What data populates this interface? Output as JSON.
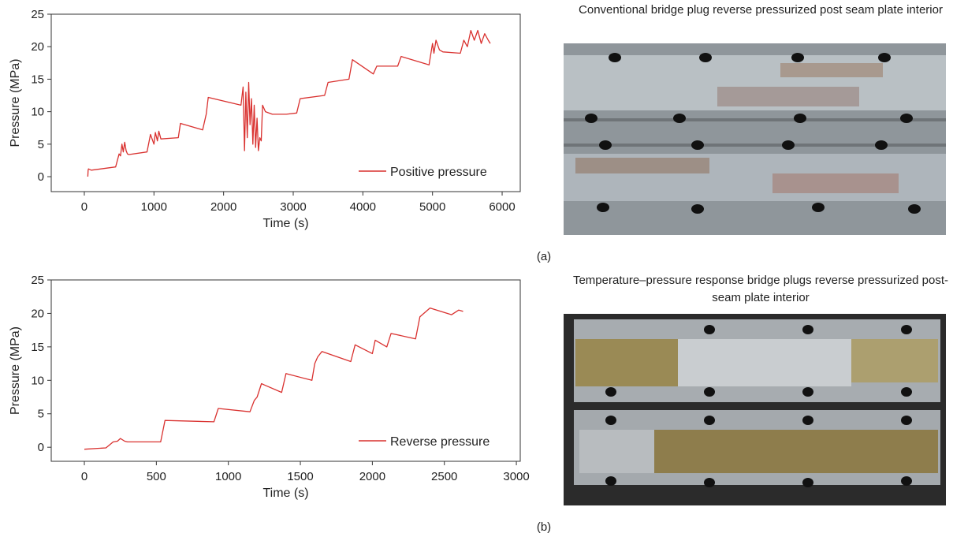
{
  "chart_data": [
    {
      "type": "line",
      "xlabel": "Time (s)",
      "ylabel": "Pressure (MPa)",
      "xlim": [
        -475,
        6260
      ],
      "ylim": [
        -2.3,
        25
      ],
      "xticks": [
        0,
        1000,
        2000,
        3000,
        4000,
        5000,
        6000
      ],
      "yticks": [
        0,
        5,
        10,
        15,
        20,
        25
      ],
      "grid": false,
      "legend": "lower right",
      "series": [
        {
          "name": "Positive pressure",
          "color": "#d9312f",
          "x": [
            50,
            55,
            60,
            100,
            450,
            500,
            520,
            540,
            560,
            580,
            600,
            620,
            640,
            900,
            950,
            1000,
            1020,
            1050,
            1070,
            1100,
            1350,
            1380,
            1700,
            1750,
            1780,
            2250,
            2280,
            2300,
            2320,
            2340,
            2360,
            2380,
            2400,
            2420,
            2440,
            2460,
            2480,
            2500,
            2520,
            2540,
            2560,
            2600,
            2700,
            2900,
            3050,
            3100,
            3450,
            3500,
            3800,
            3850,
            4150,
            4200,
            4500,
            4550,
            4950,
            5000,
            5020,
            5050,
            5100,
            5150,
            5400,
            5450,
            5500,
            5550,
            5600,
            5650,
            5700,
            5750,
            5800,
            5830
          ],
          "values": [
            0,
            1,
            1.2,
            1,
            1.5,
            3.5,
            3.2,
            5,
            3.8,
            5.3,
            4,
            3.5,
            3.4,
            3.8,
            6.5,
            5,
            6.8,
            5.5,
            7,
            5.8,
            6,
            8.2,
            7.2,
            9.6,
            12.2,
            11,
            13.8,
            4,
            13,
            6,
            14.5,
            8,
            12,
            5,
            11,
            4.5,
            9,
            4,
            6,
            5.5,
            11,
            10,
            9.6,
            9.6,
            9.8,
            12,
            12.5,
            14.5,
            15,
            18,
            15.8,
            17,
            17,
            18.5,
            17.2,
            20.5,
            19,
            21,
            19.5,
            19.2,
            19,
            21,
            20,
            22.5,
            21,
            22.5,
            20.5,
            22,
            21,
            20.5
          ]
        }
      ]
    },
    {
      "type": "line",
      "xlabel": "Time (s)",
      "ylabel": "Pressure (MPa)",
      "xlim": [
        -230,
        3027
      ],
      "ylim": [
        -2.1,
        25
      ],
      "xticks": [
        0,
        500,
        1000,
        1500,
        2000,
        2500,
        3000
      ],
      "yticks": [
        0,
        5,
        10,
        15,
        20,
        25
      ],
      "grid": false,
      "legend": "lower right",
      "series": [
        {
          "name": "Reverse pressure",
          "color": "#d9312f",
          "x": [
            0,
            150,
            200,
            230,
            250,
            280,
            300,
            530,
            560,
            900,
            930,
            1150,
            1180,
            1200,
            1230,
            1250,
            1370,
            1400,
            1580,
            1600,
            1620,
            1650,
            1850,
            1880,
            2000,
            2020,
            2100,
            2130,
            2300,
            2330,
            2400,
            2550,
            2600,
            2630
          ],
          "values": [
            -0.3,
            -0.1,
            0.8,
            0.9,
            1.3,
            0.9,
            0.8,
            0.8,
            4,
            3.8,
            5.8,
            5.3,
            7,
            7.5,
            9.5,
            9.3,
            8.2,
            11,
            10,
            12.5,
            13.5,
            14.3,
            12.8,
            15.3,
            14,
            16,
            15,
            17,
            16.2,
            19.5,
            20.8,
            19.8,
            20.5,
            20.3
          ]
        }
      ]
    }
  ],
  "photos": [
    {
      "title": "Conventional bridge plug reverse pressurized post seam plate interior",
      "label": "(a)"
    },
    {
      "title": "Temperature–pressure response bridge plugs reverse pressurized post-seam plate interior",
      "label": "(b)"
    }
  ]
}
